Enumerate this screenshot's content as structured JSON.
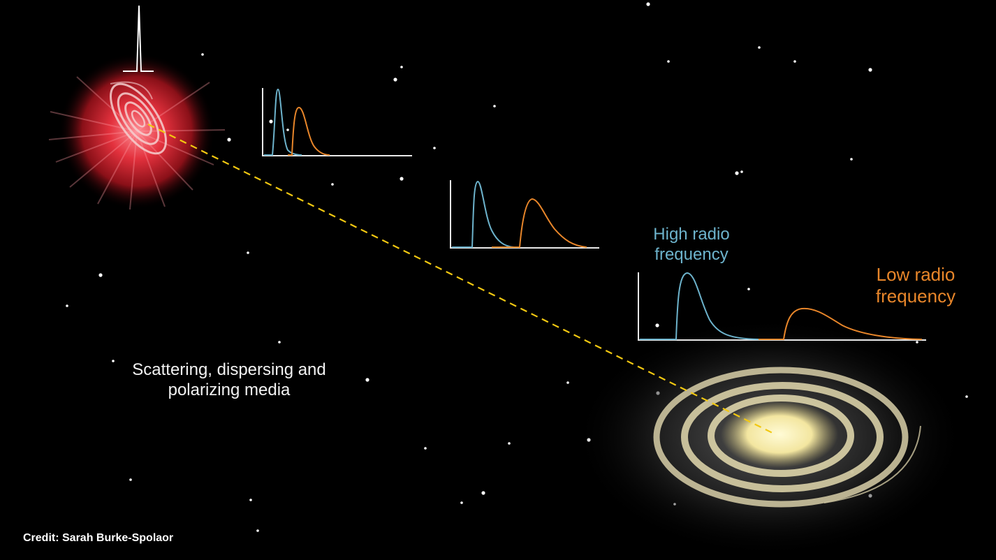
{
  "labels": {
    "high_radio_frequency": "High radio frequency",
    "low_radio_frequency": "Low radio frequency",
    "media": "Scattering, dispersing and polarizing media"
  },
  "credit": "Credit: Sarah Burke-Spolaor",
  "colors": {
    "background": "#000000",
    "high_frequency_pulse": "#6db3cc",
    "low_frequency_pulse": "#e8862a",
    "signal_path": "#f2c811",
    "source_glow": "#e0303a",
    "galaxy_glow": "#f5eaa0",
    "axes": "#e8e8e8"
  },
  "panels": [
    {
      "id": "near-source"
    },
    {
      "id": "midway"
    },
    {
      "id": "at-earth"
    }
  ]
}
